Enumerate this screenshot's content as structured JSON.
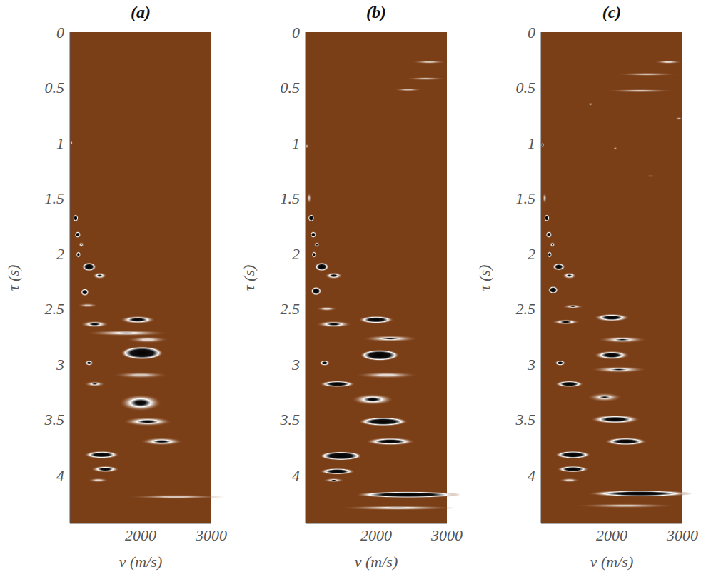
{
  "chart_data": [
    {
      "type": "heatmap",
      "title": "(a)",
      "x_label": "v (m/s)",
      "y_label": "τ (s)",
      "xlim": [
        1000,
        3000
      ],
      "xticks": [
        2000,
        3000
      ],
      "ylim": [
        0,
        4.44
      ],
      "yticks": [
        0,
        0.5,
        1,
        1.5,
        2,
        2.5,
        3,
        3.5,
        4
      ],
      "events": [
        {
          "tau": 1.0,
          "v": 1020,
          "semblance": 0.5,
          "v_width": 40,
          "tau_width": 0.04
        },
        {
          "tau": 1.68,
          "v": 1080,
          "semblance": 0.9,
          "v_width": 80,
          "tau_width": 0.07
        },
        {
          "tau": 1.83,
          "v": 1110,
          "semblance": 0.9,
          "v_width": 90,
          "tau_width": 0.06
        },
        {
          "tau": 1.92,
          "v": 1160,
          "semblance": 0.6,
          "v_width": 80,
          "tau_width": 0.05
        },
        {
          "tau": 2.01,
          "v": 1120,
          "semblance": 0.85,
          "v_width": 70,
          "tau_width": 0.06
        },
        {
          "tau": 2.12,
          "v": 1270,
          "semblance": 0.95,
          "v_width": 200,
          "tau_width": 0.08
        },
        {
          "tau": 2.2,
          "v": 1420,
          "semblance": 0.7,
          "v_width": 200,
          "tau_width": 0.06
        },
        {
          "tau": 2.35,
          "v": 1210,
          "semblance": 0.9,
          "v_width": 120,
          "tau_width": 0.07
        },
        {
          "tau": 2.47,
          "v": 1250,
          "semblance": 0.4,
          "v_width": 300,
          "tau_width": 0.04
        },
        {
          "tau": 2.6,
          "v": 1960,
          "semblance": 0.8,
          "v_width": 500,
          "tau_width": 0.07
        },
        {
          "tau": 2.64,
          "v": 1350,
          "semblance": 0.7,
          "v_width": 400,
          "tau_width": 0.06
        },
        {
          "tau": 2.72,
          "v": 1800,
          "semblance": 0.6,
          "v_width": 1200,
          "tau_width": 0.05
        },
        {
          "tau": 2.78,
          "v": 2100,
          "semblance": 0.5,
          "v_width": 600,
          "tau_width": 0.06
        },
        {
          "tau": 2.9,
          "v": 2020,
          "semblance": 1.0,
          "v_width": 600,
          "tau_width": 0.12
        },
        {
          "tau": 2.99,
          "v": 1270,
          "semblance": 0.8,
          "v_width": 120,
          "tau_width": 0.05
        },
        {
          "tau": 3.1,
          "v": 2000,
          "semblance": 0.4,
          "v_width": 800,
          "tau_width": 0.06
        },
        {
          "tau": 3.18,
          "v": 1350,
          "semblance": 0.6,
          "v_width": 300,
          "tau_width": 0.05
        },
        {
          "tau": 3.35,
          "v": 2000,
          "semblance": 0.75,
          "v_width": 600,
          "tau_width": 0.15
        },
        {
          "tau": 3.52,
          "v": 2100,
          "semblance": 0.7,
          "v_width": 700,
          "tau_width": 0.08
        },
        {
          "tau": 3.7,
          "v": 2300,
          "semblance": 0.7,
          "v_width": 600,
          "tau_width": 0.07
        },
        {
          "tau": 3.82,
          "v": 1450,
          "semblance": 0.9,
          "v_width": 500,
          "tau_width": 0.07
        },
        {
          "tau": 3.95,
          "v": 1500,
          "semblance": 0.8,
          "v_width": 400,
          "tau_width": 0.06
        },
        {
          "tau": 4.05,
          "v": 1400,
          "semblance": 0.5,
          "v_width": 300,
          "tau_width": 0.04
        },
        {
          "tau": 4.2,
          "v": 2500,
          "semblance": 0.4,
          "v_width": 1400,
          "tau_width": 0.04
        }
      ]
    },
    {
      "type": "heatmap",
      "title": "(b)",
      "x_label": "v (m/s)",
      "y_label": "τ (s)",
      "xlim": [
        1000,
        3000
      ],
      "xticks": [
        2000,
        3000
      ],
      "ylim": [
        0,
        4.44
      ],
      "yticks": [
        0,
        0.5,
        1,
        1.5,
        2,
        2.5,
        3,
        3.5,
        4
      ],
      "events": [
        {
          "tau": 0.27,
          "v": 2750,
          "semblance": 0.4,
          "v_width": 500,
          "tau_width": 0.03
        },
        {
          "tau": 0.42,
          "v": 2700,
          "semblance": 0.35,
          "v_width": 600,
          "tau_width": 0.03
        },
        {
          "tau": 0.52,
          "v": 2450,
          "semblance": 0.35,
          "v_width": 400,
          "tau_width": 0.03
        },
        {
          "tau": 1.03,
          "v": 1020,
          "semblance": 0.5,
          "v_width": 40,
          "tau_width": 0.04
        },
        {
          "tau": 1.5,
          "v": 1050,
          "semblance": 0.4,
          "v_width": 60,
          "tau_width": 0.1
        },
        {
          "tau": 1.68,
          "v": 1080,
          "semblance": 0.95,
          "v_width": 90,
          "tau_width": 0.07
        },
        {
          "tau": 1.83,
          "v": 1110,
          "semblance": 0.9,
          "v_width": 90,
          "tau_width": 0.06
        },
        {
          "tau": 1.92,
          "v": 1160,
          "semblance": 0.7,
          "v_width": 80,
          "tau_width": 0.05
        },
        {
          "tau": 2.01,
          "v": 1120,
          "semblance": 0.85,
          "v_width": 70,
          "tau_width": 0.06
        },
        {
          "tau": 2.12,
          "v": 1230,
          "semblance": 0.95,
          "v_width": 200,
          "tau_width": 0.08
        },
        {
          "tau": 2.2,
          "v": 1400,
          "semblance": 0.75,
          "v_width": 250,
          "tau_width": 0.06
        },
        {
          "tau": 2.34,
          "v": 1150,
          "semblance": 0.95,
          "v_width": 150,
          "tau_width": 0.08
        },
        {
          "tau": 2.5,
          "v": 1300,
          "semblance": 0.5,
          "v_width": 300,
          "tau_width": 0.04
        },
        {
          "tau": 2.6,
          "v": 2000,
          "semblance": 0.9,
          "v_width": 500,
          "tau_width": 0.07
        },
        {
          "tau": 2.64,
          "v": 1400,
          "semblance": 0.7,
          "v_width": 500,
          "tau_width": 0.06
        },
        {
          "tau": 2.77,
          "v": 2200,
          "semblance": 0.6,
          "v_width": 800,
          "tau_width": 0.06
        },
        {
          "tau": 2.92,
          "v": 2050,
          "semblance": 1.0,
          "v_width": 550,
          "tau_width": 0.1
        },
        {
          "tau": 2.99,
          "v": 1270,
          "semblance": 0.85,
          "v_width": 150,
          "tau_width": 0.05
        },
        {
          "tau": 3.1,
          "v": 2150,
          "semblance": 0.5,
          "v_width": 900,
          "tau_width": 0.06
        },
        {
          "tau": 3.18,
          "v": 1450,
          "semblance": 0.9,
          "v_width": 500,
          "tau_width": 0.06
        },
        {
          "tau": 3.32,
          "v": 1950,
          "semblance": 0.7,
          "v_width": 600,
          "tau_width": 0.1
        },
        {
          "tau": 3.52,
          "v": 2100,
          "semblance": 0.95,
          "v_width": 700,
          "tau_width": 0.08
        },
        {
          "tau": 3.7,
          "v": 2200,
          "semblance": 0.85,
          "v_width": 700,
          "tau_width": 0.07
        },
        {
          "tau": 3.83,
          "v": 1500,
          "semblance": 1.0,
          "v_width": 600,
          "tau_width": 0.08
        },
        {
          "tau": 3.97,
          "v": 1450,
          "semblance": 0.9,
          "v_width": 500,
          "tau_width": 0.06
        },
        {
          "tau": 4.05,
          "v": 1400,
          "semblance": 0.6,
          "v_width": 300,
          "tau_width": 0.04
        },
        {
          "tau": 4.18,
          "v": 2450,
          "semblance": 0.95,
          "v_width": 1500,
          "tau_width": 0.06
        },
        {
          "tau": 4.3,
          "v": 2300,
          "semblance": 0.6,
          "v_width": 1700,
          "tau_width": 0.04
        }
      ]
    },
    {
      "type": "heatmap",
      "title": "(c)",
      "x_label": "v (m/s)",
      "y_label": "τ (s)",
      "xlim": [
        1000,
        3000
      ],
      "xticks": [
        2000,
        3000
      ],
      "ylim": [
        0,
        4.44
      ],
      "yticks": [
        0,
        0.5,
        1,
        1.5,
        2,
        2.5,
        3,
        3.5,
        4
      ],
      "events": [
        {
          "tau": 0.27,
          "v": 2800,
          "semblance": 0.5,
          "v_width": 400,
          "tau_width": 0.03
        },
        {
          "tau": 0.38,
          "v": 2500,
          "semblance": 0.4,
          "v_width": 900,
          "tau_width": 0.03
        },
        {
          "tau": 0.53,
          "v": 2400,
          "semblance": 0.45,
          "v_width": 1000,
          "tau_width": 0.03
        },
        {
          "tau": 0.65,
          "v": 1700,
          "semblance": 0.3,
          "v_width": 60,
          "tau_width": 0.03
        },
        {
          "tau": 0.78,
          "v": 2950,
          "semblance": 0.3,
          "v_width": 100,
          "tau_width": 0.03
        },
        {
          "tau": 1.02,
          "v": 1020,
          "semblance": 0.7,
          "v_width": 50,
          "tau_width": 0.05
        },
        {
          "tau": 1.05,
          "v": 2050,
          "semblance": 0.25,
          "v_width": 60,
          "tau_width": 0.03
        },
        {
          "tau": 1.3,
          "v": 2550,
          "semblance": 0.2,
          "v_width": 150,
          "tau_width": 0.02
        },
        {
          "tau": 1.5,
          "v": 1050,
          "semblance": 0.4,
          "v_width": 60,
          "tau_width": 0.1
        },
        {
          "tau": 1.68,
          "v": 1080,
          "semblance": 0.9,
          "v_width": 80,
          "tau_width": 0.07
        },
        {
          "tau": 1.83,
          "v": 1110,
          "semblance": 0.9,
          "v_width": 90,
          "tau_width": 0.06
        },
        {
          "tau": 1.92,
          "v": 1160,
          "semblance": 0.65,
          "v_width": 80,
          "tau_width": 0.05
        },
        {
          "tau": 2.01,
          "v": 1120,
          "semblance": 0.85,
          "v_width": 70,
          "tau_width": 0.06
        },
        {
          "tau": 2.12,
          "v": 1250,
          "semblance": 0.9,
          "v_width": 180,
          "tau_width": 0.07
        },
        {
          "tau": 2.2,
          "v": 1400,
          "semblance": 0.7,
          "v_width": 200,
          "tau_width": 0.06
        },
        {
          "tau": 2.33,
          "v": 1170,
          "semblance": 0.95,
          "v_width": 140,
          "tau_width": 0.07
        },
        {
          "tau": 2.48,
          "v": 1450,
          "semblance": 0.6,
          "v_width": 300,
          "tau_width": 0.04
        },
        {
          "tau": 2.58,
          "v": 2000,
          "semblance": 0.85,
          "v_width": 500,
          "tau_width": 0.07
        },
        {
          "tau": 2.62,
          "v": 1350,
          "semblance": 0.7,
          "v_width": 400,
          "tau_width": 0.05
        },
        {
          "tau": 2.78,
          "v": 2150,
          "semblance": 0.6,
          "v_width": 700,
          "tau_width": 0.06
        },
        {
          "tau": 2.92,
          "v": 2000,
          "semblance": 0.85,
          "v_width": 500,
          "tau_width": 0.08
        },
        {
          "tau": 2.99,
          "v": 1270,
          "semblance": 0.85,
          "v_width": 150,
          "tau_width": 0.05
        },
        {
          "tau": 3.05,
          "v": 2100,
          "semblance": 0.6,
          "v_width": 800,
          "tau_width": 0.06
        },
        {
          "tau": 3.18,
          "v": 1400,
          "semblance": 0.9,
          "v_width": 400,
          "tau_width": 0.06
        },
        {
          "tau": 3.3,
          "v": 1900,
          "semblance": 0.6,
          "v_width": 500,
          "tau_width": 0.08
        },
        {
          "tau": 3.5,
          "v": 2050,
          "semblance": 0.85,
          "v_width": 700,
          "tau_width": 0.08
        },
        {
          "tau": 3.7,
          "v": 2200,
          "semblance": 0.9,
          "v_width": 600,
          "tau_width": 0.07
        },
        {
          "tau": 3.82,
          "v": 1450,
          "semblance": 0.95,
          "v_width": 500,
          "tau_width": 0.07
        },
        {
          "tau": 3.95,
          "v": 1450,
          "semblance": 0.9,
          "v_width": 450,
          "tau_width": 0.06
        },
        {
          "tau": 4.05,
          "v": 1400,
          "semblance": 0.5,
          "v_width": 300,
          "tau_width": 0.04
        },
        {
          "tau": 4.17,
          "v": 2400,
          "semblance": 0.9,
          "v_width": 1500,
          "tau_width": 0.06
        },
        {
          "tau": 4.28,
          "v": 2200,
          "semblance": 0.4,
          "v_width": 1500,
          "tau_width": 0.04
        }
      ]
    }
  ]
}
